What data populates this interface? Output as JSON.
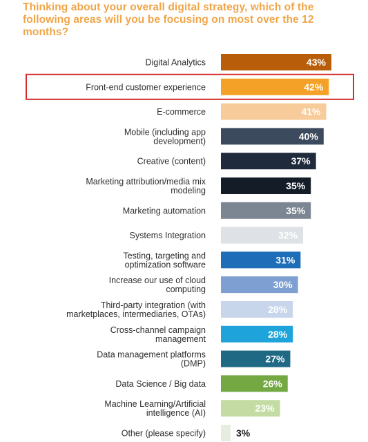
{
  "chart_data": {
    "type": "bar",
    "orientation": "horizontal",
    "title": "Thinking about your overall digital strategy, which of the following areas will you be focusing on most over the 12 months?",
    "categories": [
      "Digital Analytics",
      "Front-end customer experience",
      "E-commerce",
      "Mobile (including app development)",
      "Creative (content)",
      "Marketing attribution/media mix modeling",
      "Marketing automation",
      "Systems Integration",
      "Testing, targeting and optimization software",
      "Increase our use of cloud computing",
      "Third-party integration (with marketplaces, intermediaries, OTAs)",
      "Cross-channel campaign management",
      "Data management platforms (DMP)",
      "Data Science / Big data",
      "Machine Learning/Artificial intelligence (AI)",
      "Other (please specify)"
    ],
    "category_lines": [
      [
        "Digital Analytics"
      ],
      [
        "Front-end customer experience"
      ],
      [
        "E-commerce"
      ],
      [
        "Mobile (including app",
        "development)"
      ],
      [
        "Creative (content)"
      ],
      [
        "Marketing attribution/media mix",
        "modeling"
      ],
      [
        "Marketing automation"
      ],
      [
        "Systems Integration"
      ],
      [
        "Testing, targeting and",
        "optimization software"
      ],
      [
        "Increase our use of cloud",
        "computing"
      ],
      [
        "Third-party integration (with",
        "marketplaces, intermediaries, OTAs)"
      ],
      [
        "Cross-channel campaign",
        "management"
      ],
      [
        "Data management platforms",
        "(DMP)"
      ],
      [
        "Data Science / Big data"
      ],
      [
        "Machine Learning/Artificial",
        "intelligence (AI)"
      ],
      [
        "Other (please specify)"
      ]
    ],
    "values": [
      43,
      42,
      41,
      40,
      37,
      35,
      35,
      32,
      31,
      30,
      28,
      28,
      27,
      26,
      23,
      3
    ],
    "value_labels": [
      "43%",
      "42%",
      "41%",
      "40%",
      "37%",
      "35%",
      "35%",
      "32%",
      "31%",
      "30%",
      "28%",
      "28%",
      "27%",
      "26%",
      "23%",
      "3%"
    ],
    "bar_colors": [
      "#b85e0b",
      "#f4a127",
      "#f7cb9a",
      "#3c4a5e",
      "#1f2b3d",
      "#141c28",
      "#7c8592",
      "#dee1e6",
      "#1e6db8",
      "#7d9fd1",
      "#c8d6ec",
      "#1ea3da",
      "#1f6985",
      "#73a843",
      "#c4dca4",
      "#e6ecdf"
    ],
    "value_label_colors": [
      "#ffffff",
      "#ffffff",
      "#ffffff",
      "#ffffff",
      "#ffffff",
      "#ffffff",
      "#ffffff",
      "#ffffff",
      "#ffffff",
      "#ffffff",
      "#ffffff",
      "#ffffff",
      "#ffffff",
      "#ffffff",
      "#ffffff",
      "#1a1a1a"
    ],
    "highlighted_category_index": 1,
    "highlight_color": "#d42a2a",
    "title_color": "#f0a548",
    "xlim": [
      0,
      50
    ],
    "grid": false,
    "legend": "none"
  }
}
